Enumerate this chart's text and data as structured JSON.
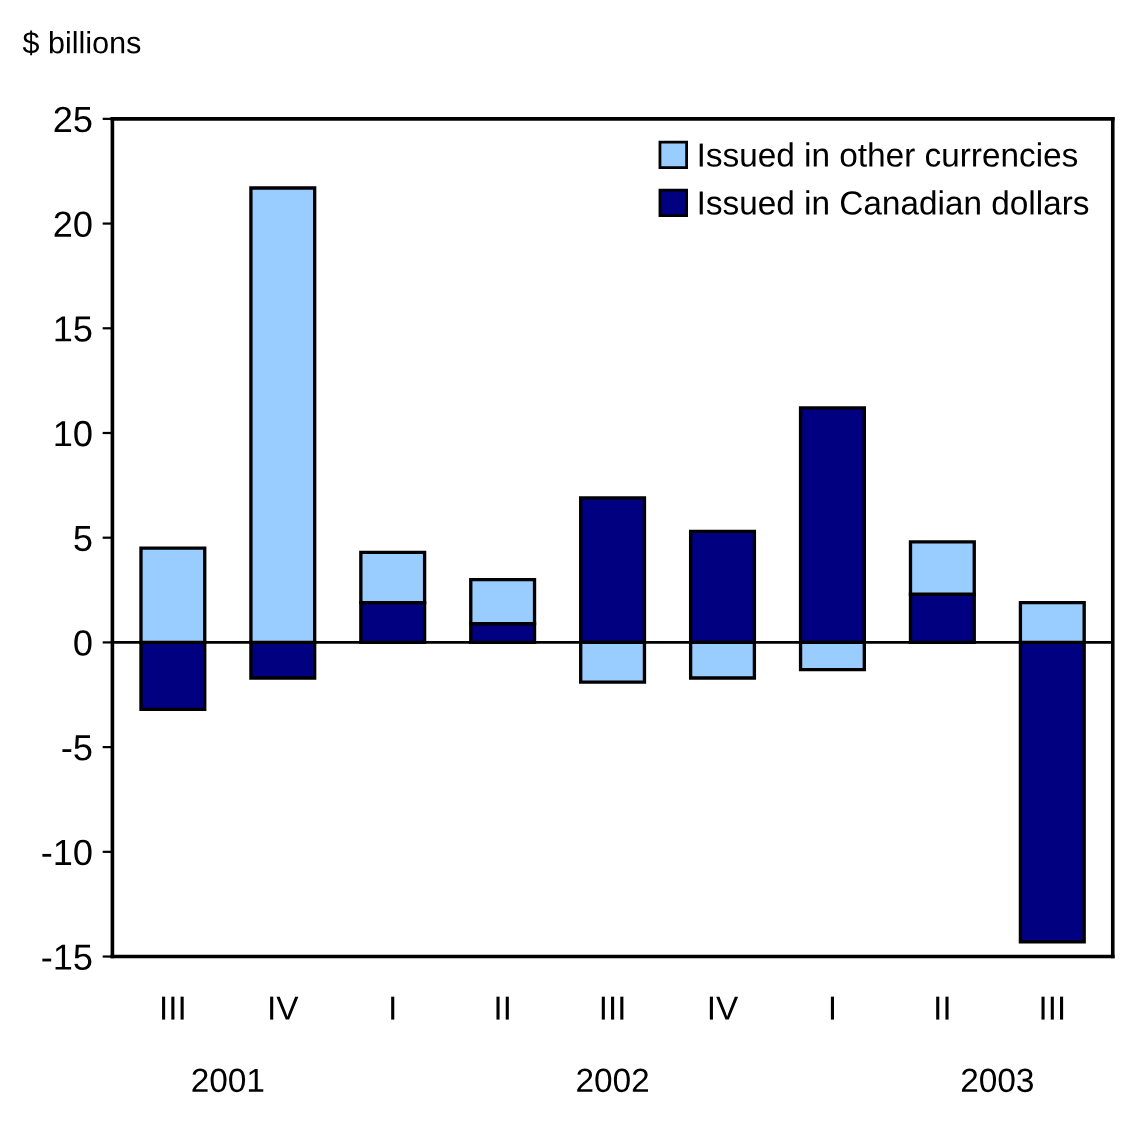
{
  "chart_data": {
    "type": "bar",
    "stacked": true,
    "ylabel": "$ billions",
    "categories": [
      "III",
      "IV",
      "I",
      "II",
      "III",
      "IV",
      "I",
      "II",
      "III"
    ],
    "series": [
      {
        "name": "Issued in Canadian dollars",
        "color": "#000080",
        "values": [
          -3.2,
          -1.7,
          1.9,
          0.9,
          6.9,
          5.3,
          11.2,
          2.3,
          -14.3
        ]
      },
      {
        "name": "Issued in other currencies",
        "color": "#99ccff",
        "values": [
          4.5,
          21.7,
          2.4,
          2.1,
          -1.9,
          -1.7,
          -1.3,
          2.5,
          1.9
        ]
      }
    ],
    "ylim": [
      -15,
      25
    ],
    "yticks": [
      -15,
      -10,
      -5,
      0,
      5,
      10,
      15,
      20,
      25
    ],
    "annotations": [
      "2001",
      "2002",
      "2003"
    ],
    "ref_lines": [
      {
        "axis": "y",
        "value": 0,
        "color": "#000000"
      }
    ],
    "grid": false,
    "legend": "top right"
  }
}
